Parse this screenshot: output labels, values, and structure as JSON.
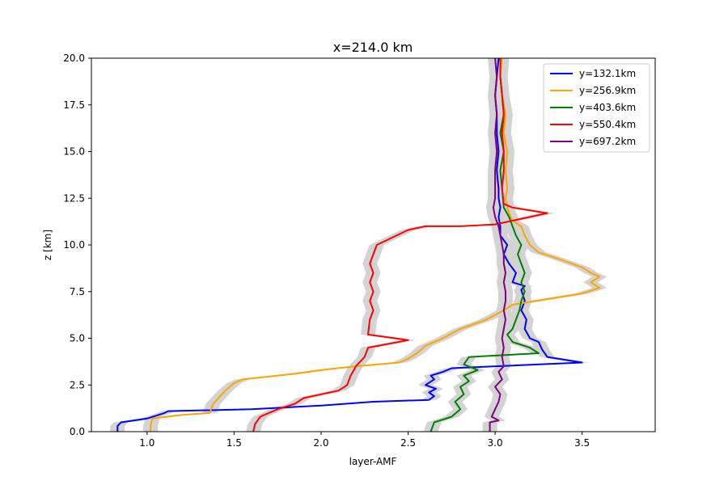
{
  "chart_data": {
    "type": "line",
    "title": "x=214.0 km",
    "xlabel": "layer-AMF",
    "ylabel": "z [km]",
    "xlim": [
      0.68,
      3.92
    ],
    "ylim": [
      0,
      20
    ],
    "xticks": [
      "1.0",
      "1.5",
      "2.0",
      "2.5",
      "3.0",
      "3.5"
    ],
    "yticks": [
      "0.0",
      "2.5",
      "5.0",
      "7.5",
      "10.0",
      "12.5",
      "15.0",
      "17.5",
      "20.0"
    ],
    "grid": false,
    "legend_position": "top-right",
    "uncertainty_band": "light gray shading around each profile",
    "series": [
      {
        "name": "y=132.1km",
        "color": "#0000ff",
        "points": [
          [
            0.83,
            0.0
          ],
          [
            0.83,
            0.3
          ],
          [
            0.85,
            0.5
          ],
          [
            1.0,
            0.7
          ],
          [
            1.1,
            1.0
          ],
          [
            1.12,
            1.1
          ],
          [
            1.6,
            1.2
          ],
          [
            2.0,
            1.4
          ],
          [
            2.3,
            1.6
          ],
          [
            2.62,
            1.7
          ],
          [
            2.65,
            1.9
          ],
          [
            2.62,
            2.1
          ],
          [
            2.66,
            2.3
          ],
          [
            2.6,
            2.5
          ],
          [
            2.65,
            2.8
          ],
          [
            2.63,
            3.0
          ],
          [
            2.7,
            3.2
          ],
          [
            2.75,
            3.4
          ],
          [
            3.5,
            3.7
          ],
          [
            3.3,
            4.0
          ],
          [
            3.27,
            4.4
          ],
          [
            3.25,
            4.8
          ],
          [
            3.2,
            5.0
          ],
          [
            3.17,
            5.5
          ],
          [
            3.18,
            6.0
          ],
          [
            3.15,
            6.5
          ],
          [
            3.17,
            7.0
          ],
          [
            3.15,
            7.6
          ],
          [
            3.17,
            7.8
          ],
          [
            3.1,
            8.0
          ],
          [
            3.12,
            8.5
          ],
          [
            3.08,
            9.0
          ],
          [
            3.05,
            9.5
          ],
          [
            3.07,
            10.0
          ],
          [
            3.03,
            10.5
          ],
          [
            3.03,
            11.0
          ],
          [
            3.02,
            11.5
          ],
          [
            3.03,
            12.0
          ],
          [
            3.02,
            12.5
          ],
          [
            3.02,
            13.0
          ],
          [
            3.01,
            14.0
          ],
          [
            3.02,
            15.0
          ],
          [
            3.01,
            16.0
          ],
          [
            3.01,
            17.0
          ],
          [
            3.0,
            18.0
          ],
          [
            3.01,
            19.0
          ],
          [
            3.02,
            20.0
          ]
        ]
      },
      {
        "name": "y=256.9km",
        "color": "#ffa500",
        "points": [
          [
            1.02,
            0.0
          ],
          [
            1.02,
            0.3
          ],
          [
            1.03,
            0.7
          ],
          [
            1.2,
            0.9
          ],
          [
            1.36,
            1.0
          ],
          [
            1.38,
            1.5
          ],
          [
            1.45,
            2.2
          ],
          [
            1.5,
            2.6
          ],
          [
            1.55,
            2.8
          ],
          [
            1.85,
            3.1
          ],
          [
            2.0,
            3.3
          ],
          [
            2.2,
            3.5
          ],
          [
            2.45,
            3.7
          ],
          [
            2.5,
            3.9
          ],
          [
            2.55,
            4.2
          ],
          [
            2.6,
            4.6
          ],
          [
            2.7,
            5.0
          ],
          [
            2.8,
            5.5
          ],
          [
            2.95,
            6.0
          ],
          [
            3.05,
            6.5
          ],
          [
            3.1,
            6.8
          ],
          [
            3.3,
            7.1
          ],
          [
            3.5,
            7.4
          ],
          [
            3.6,
            7.7
          ],
          [
            3.55,
            8.0
          ],
          [
            3.6,
            8.3
          ],
          [
            3.55,
            8.5
          ],
          [
            3.5,
            8.8
          ],
          [
            3.35,
            9.3
          ],
          [
            3.25,
            9.6
          ],
          [
            3.2,
            10.0
          ],
          [
            3.17,
            10.5
          ],
          [
            3.15,
            11.0
          ],
          [
            3.1,
            11.3
          ],
          [
            3.08,
            11.7
          ],
          [
            3.07,
            12.0
          ],
          [
            3.06,
            12.5
          ],
          [
            3.07,
            13.0
          ],
          [
            3.06,
            14.0
          ],
          [
            3.07,
            15.0
          ],
          [
            3.05,
            16.0
          ],
          [
            3.06,
            17.0
          ],
          [
            3.04,
            18.0
          ],
          [
            3.03,
            19.0
          ],
          [
            3.04,
            20.0
          ]
        ]
      },
      {
        "name": "y=403.6km",
        "color": "#008000",
        "points": [
          [
            2.63,
            0.0
          ],
          [
            2.65,
            0.5
          ],
          [
            2.75,
            0.8
          ],
          [
            2.8,
            1.2
          ],
          [
            2.77,
            1.6
          ],
          [
            2.82,
            2.0
          ],
          [
            2.8,
            2.4
          ],
          [
            2.85,
            2.7
          ],
          [
            2.82,
            3.0
          ],
          [
            2.9,
            3.3
          ],
          [
            2.82,
            3.6
          ],
          [
            2.85,
            4.0
          ],
          [
            3.25,
            4.2
          ],
          [
            3.2,
            4.5
          ],
          [
            3.1,
            4.8
          ],
          [
            3.07,
            5.2
          ],
          [
            3.1,
            5.5
          ],
          [
            3.12,
            6.0
          ],
          [
            3.14,
            6.5
          ],
          [
            3.15,
            7.0
          ],
          [
            3.17,
            7.5
          ],
          [
            3.15,
            8.0
          ],
          [
            3.17,
            8.5
          ],
          [
            3.15,
            9.0
          ],
          [
            3.13,
            9.5
          ],
          [
            3.15,
            10.0
          ],
          [
            3.12,
            10.5
          ],
          [
            3.1,
            11.0
          ],
          [
            3.08,
            11.5
          ],
          [
            3.05,
            12.0
          ],
          [
            3.04,
            13.0
          ],
          [
            3.03,
            14.0
          ],
          [
            3.05,
            15.0
          ],
          [
            3.03,
            16.0
          ],
          [
            3.05,
            17.0
          ],
          [
            3.04,
            18.0
          ],
          [
            3.03,
            19.0
          ],
          [
            3.03,
            20.0
          ]
        ]
      },
      {
        "name": "y=550.4km",
        "color": "#ff0000",
        "points": [
          [
            1.61,
            0.0
          ],
          [
            1.62,
            0.4
          ],
          [
            1.65,
            0.8
          ],
          [
            1.7,
            1.0
          ],
          [
            1.75,
            1.2
          ],
          [
            1.85,
            1.5
          ],
          [
            1.9,
            1.8
          ],
          [
            2.0,
            2.0
          ],
          [
            2.1,
            2.2
          ],
          [
            2.15,
            2.5
          ],
          [
            2.17,
            3.0
          ],
          [
            2.2,
            3.5
          ],
          [
            2.25,
            4.0
          ],
          [
            2.27,
            4.5
          ],
          [
            2.5,
            4.9
          ],
          [
            2.27,
            5.2
          ],
          [
            2.28,
            6.0
          ],
          [
            2.3,
            6.5
          ],
          [
            2.28,
            7.0
          ],
          [
            2.3,
            7.5
          ],
          [
            2.28,
            8.0
          ],
          [
            2.3,
            8.5
          ],
          [
            2.28,
            9.0
          ],
          [
            2.3,
            9.5
          ],
          [
            2.32,
            10.0
          ],
          [
            2.5,
            10.8
          ],
          [
            2.6,
            11.0
          ],
          [
            2.8,
            11.0
          ],
          [
            3.0,
            11.1
          ],
          [
            3.2,
            11.5
          ],
          [
            3.3,
            11.7
          ],
          [
            3.1,
            12.0
          ],
          [
            3.05,
            12.2
          ],
          [
            3.04,
            13.0
          ],
          [
            3.05,
            14.0
          ],
          [
            3.05,
            15.0
          ],
          [
            3.04,
            16.0
          ],
          [
            3.05,
            17.0
          ],
          [
            3.04,
            18.0
          ],
          [
            3.03,
            19.0
          ],
          [
            3.03,
            20.0
          ]
        ]
      },
      {
        "name": "y=697.2km",
        "color": "#800080",
        "points": [
          [
            2.97,
            0.0
          ],
          [
            2.97,
            0.5
          ],
          [
            3.02,
            0.6
          ],
          [
            2.98,
            0.8
          ],
          [
            3.0,
            1.2
          ],
          [
            3.02,
            1.6
          ],
          [
            3.03,
            2.0
          ],
          [
            3.0,
            2.4
          ],
          [
            3.04,
            2.8
          ],
          [
            3.02,
            3.2
          ],
          [
            3.05,
            3.5
          ],
          [
            3.04,
            4.0
          ],
          [
            3.05,
            4.5
          ],
          [
            3.04,
            5.0
          ],
          [
            3.05,
            5.5
          ],
          [
            3.06,
            6.0
          ],
          [
            3.05,
            6.5
          ],
          [
            3.06,
            7.0
          ],
          [
            3.06,
            7.5
          ],
          [
            3.05,
            8.0
          ],
          [
            3.06,
            8.5
          ],
          [
            3.05,
            9.0
          ],
          [
            3.05,
            9.5
          ],
          [
            3.04,
            10.0
          ],
          [
            3.03,
            10.5
          ],
          [
            3.02,
            11.0
          ],
          [
            3.0,
            11.5
          ],
          [
            2.99,
            12.0
          ],
          [
            3.0,
            12.5
          ],
          [
            3.0,
            13.0
          ],
          [
            3.0,
            14.0
          ],
          [
            3.01,
            15.0
          ],
          [
            3.0,
            16.0
          ],
          [
            3.01,
            17.0
          ],
          [
            3.0,
            18.0
          ],
          [
            3.01,
            19.0
          ],
          [
            3.0,
            20.0
          ]
        ]
      }
    ]
  }
}
